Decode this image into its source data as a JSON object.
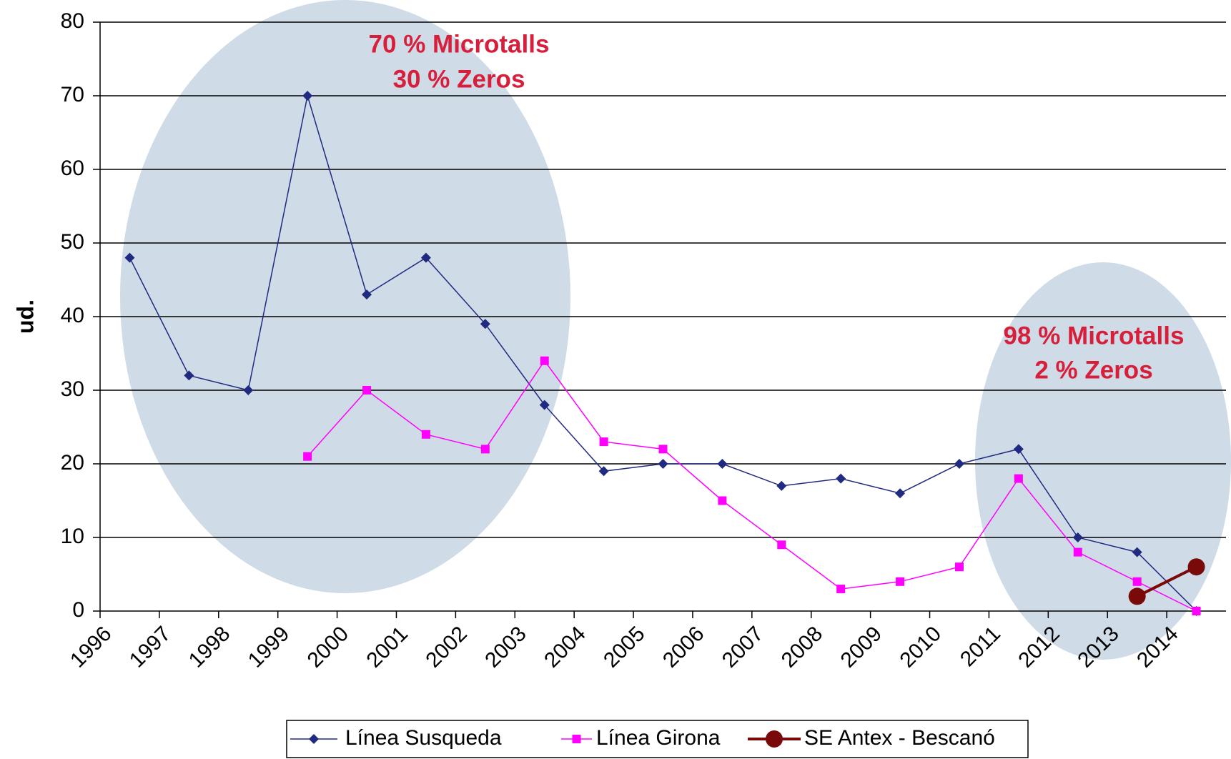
{
  "chart_data": {
    "type": "line",
    "ylabel": "ud.",
    "categories": [
      "1996",
      "1997",
      "1998",
      "1999",
      "2000",
      "2001",
      "2002",
      "2003",
      "2004",
      "2005",
      "2006",
      "2007",
      "2008",
      "2009",
      "2010",
      "2011",
      "2012",
      "2013",
      "2014"
    ],
    "series": [
      {
        "name": "Línea Susqueda",
        "color": "#1f2a80",
        "marker": "diamond",
        "values": [
          48,
          32,
          30,
          70,
          43,
          48,
          39,
          28,
          19,
          20,
          20,
          17,
          18,
          16,
          20,
          22,
          10,
          8,
          0
        ]
      },
      {
        "name": "Línea Girona",
        "color": "#ff00ff",
        "marker": "square",
        "values": [
          null,
          null,
          null,
          21,
          30,
          24,
          22,
          34,
          23,
          22,
          15,
          9,
          3,
          4,
          6,
          18,
          8,
          4,
          0
        ]
      },
      {
        "name": "SE Antex - Bescanó",
        "color": "#7a0a0a",
        "marker": "circle",
        "values": [
          null,
          null,
          null,
          null,
          null,
          null,
          null,
          null,
          null,
          null,
          null,
          null,
          null,
          null,
          null,
          null,
          null,
          2,
          6
        ]
      }
    ],
    "ylim": [
      0,
      80
    ],
    "yticks": [
      0,
      10,
      20,
      30,
      40,
      50,
      60,
      70,
      80
    ],
    "grid": true,
    "annotations": [
      "70 % Microtalls",
      "30 % Zeros",
      "98 % Microtalls",
      "2 % Zeros"
    ]
  }
}
